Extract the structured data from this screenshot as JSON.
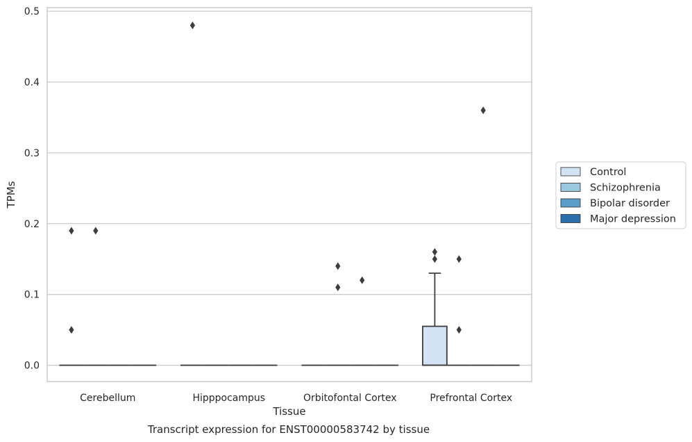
{
  "chart_data": {
    "type": "box",
    "title": "Transcript expression for ENST00000583742 by tissue",
    "xlabel": "Tissue",
    "ylabel": "TPMs",
    "ylim": [
      -0.023,
      0.505
    ],
    "yticks": [
      "0.0",
      "0.1",
      "0.2",
      "0.3",
      "0.4",
      "0.5"
    ],
    "grid": true,
    "legend_position": "right",
    "categories": [
      "Cerebellum",
      "Hipppocampus",
      "Orbitofontal Cortex",
      "Prefrontal Cortex"
    ],
    "series": [
      {
        "name": "Control",
        "color": "#d2e3f3"
      },
      {
        "name": "Schizophrenia",
        "color": "#9ac8e0"
      },
      {
        "name": "Bipolar disorder",
        "color": "#5a9ec9"
      },
      {
        "name": "Major depression",
        "color": "#2b6eab"
      }
    ],
    "boxes": [
      {
        "category": "Cerebellum",
        "series": "Control",
        "q1": 0,
        "median": 0,
        "q3": 0,
        "whisker_low": 0,
        "whisker_high": 0,
        "outliers": [
          0.19,
          0.05
        ]
      },
      {
        "category": "Cerebellum",
        "series": "Schizophrenia",
        "q1": 0,
        "median": 0,
        "q3": 0,
        "whisker_low": 0,
        "whisker_high": 0,
        "outliers": [
          0.19
        ]
      },
      {
        "category": "Cerebellum",
        "series": "Bipolar disorder",
        "q1": 0,
        "median": 0,
        "q3": 0,
        "whisker_low": 0,
        "whisker_high": 0,
        "outliers": []
      },
      {
        "category": "Cerebellum",
        "series": "Major depression",
        "q1": 0,
        "median": 0,
        "q3": 0,
        "whisker_low": 0,
        "whisker_high": 0,
        "outliers": []
      },
      {
        "category": "Hipppocampus",
        "series": "Control",
        "q1": 0,
        "median": 0,
        "q3": 0,
        "whisker_low": 0,
        "whisker_high": 0,
        "outliers": [
          0.48
        ]
      },
      {
        "category": "Hipppocampus",
        "series": "Schizophrenia",
        "q1": 0,
        "median": 0,
        "q3": 0,
        "whisker_low": 0,
        "whisker_high": 0,
        "outliers": []
      },
      {
        "category": "Hipppocampus",
        "series": "Bipolar disorder",
        "q1": 0,
        "median": 0,
        "q3": 0,
        "whisker_low": 0,
        "whisker_high": 0,
        "outliers": []
      },
      {
        "category": "Hipppocampus",
        "series": "Major depression",
        "q1": 0,
        "median": 0,
        "q3": 0,
        "whisker_low": 0,
        "whisker_high": 0,
        "outliers": []
      },
      {
        "category": "Orbitofontal Cortex",
        "series": "Control",
        "q1": 0,
        "median": 0,
        "q3": 0,
        "whisker_low": 0,
        "whisker_high": 0,
        "outliers": []
      },
      {
        "category": "Orbitofontal Cortex",
        "series": "Schizophrenia",
        "q1": 0,
        "median": 0,
        "q3": 0,
        "whisker_low": 0,
        "whisker_high": 0,
        "outliers": [
          0.14,
          0.11
        ]
      },
      {
        "category": "Orbitofontal Cortex",
        "series": "Bipolar disorder",
        "q1": 0,
        "median": 0,
        "q3": 0,
        "whisker_low": 0,
        "whisker_high": 0,
        "outliers": [
          0.12
        ]
      },
      {
        "category": "Orbitofontal Cortex",
        "series": "Major depression",
        "q1": 0,
        "median": 0,
        "q3": 0,
        "whisker_low": 0,
        "whisker_high": 0,
        "outliers": []
      },
      {
        "category": "Prefrontal Cortex",
        "series": "Control",
        "q1": 0,
        "median": 0,
        "q3": 0.055,
        "whisker_low": 0,
        "whisker_high": 0.13,
        "outliers": [
          0.16,
          0.15
        ]
      },
      {
        "category": "Prefrontal Cortex",
        "series": "Schizophrenia",
        "q1": 0,
        "median": 0,
        "q3": 0,
        "whisker_low": 0,
        "whisker_high": 0,
        "outliers": [
          0.15,
          0.05
        ]
      },
      {
        "category": "Prefrontal Cortex",
        "series": "Bipolar disorder",
        "q1": 0,
        "median": 0,
        "q3": 0,
        "whisker_low": 0,
        "whisker_high": 0,
        "outliers": [
          0.36
        ]
      },
      {
        "category": "Prefrontal Cortex",
        "series": "Major depression",
        "q1": 0,
        "median": 0,
        "q3": 0,
        "whisker_low": 0,
        "whisker_high": 0,
        "outliers": []
      }
    ]
  }
}
